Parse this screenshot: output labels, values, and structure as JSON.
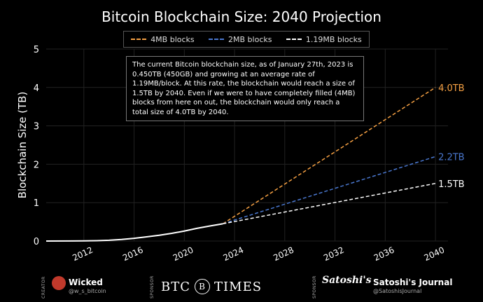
{
  "title": "Bitcoin Blockchain Size: 2040 Projection",
  "legend": [
    {
      "label": "4MB blocks",
      "color": "#f5a043"
    },
    {
      "label": "2MB blocks",
      "color": "#4a78d0"
    },
    {
      "label": "1.19MB blocks",
      "color": "#ffffff"
    }
  ],
  "annotation": "The current Bitcoin blockchain size, as of January 27th, 2023 is 0.450TB (450GB) and growing at an average rate of 1.19MB/block. At this rate, the blockchain would reach a size of 1.5TB by 2040. Even if we were to have completely filled (4MB) blocks from here on out, the blockchain would only reach a total size of 4.0TB by 2040.",
  "chart_data": {
    "type": "line",
    "title": "Bitcoin Blockchain Size: 2040 Projection",
    "xlabel": "",
    "ylabel": "Blockchain Size (TB)",
    "xlim": [
      2009,
      2041
    ],
    "ylim": [
      0,
      5
    ],
    "xticks": [
      2012,
      2016,
      2020,
      2024,
      2028,
      2032,
      2036,
      2040
    ],
    "yticks": [
      0,
      1,
      2,
      3,
      4,
      5
    ],
    "grid": true,
    "legend_position": "top",
    "historical": {
      "name": "",
      "color": "#ffffff",
      "x": [
        2009,
        2011,
        2012,
        2013,
        2014,
        2015,
        2016,
        2017,
        2018,
        2019,
        2020,
        2021,
        2022,
        2023.07
      ],
      "y": [
        0.0,
        0.002,
        0.004,
        0.01,
        0.02,
        0.04,
        0.07,
        0.11,
        0.15,
        0.2,
        0.26,
        0.33,
        0.39,
        0.45
      ]
    },
    "series": [
      {
        "name": "4MB blocks",
        "color": "#f5a043",
        "x": [
          2023.07,
          2040
        ],
        "y": [
          0.45,
          4.0
        ],
        "end_label": "4.0TB"
      },
      {
        "name": "2MB blocks",
        "color": "#4a78d0",
        "x": [
          2023.07,
          2040
        ],
        "y": [
          0.45,
          2.2
        ],
        "end_label": "2.2TB"
      },
      {
        "name": "1.19MB blocks",
        "color": "#ffffff",
        "x": [
          2023.07,
          2040
        ],
        "y": [
          0.45,
          1.5
        ],
        "end_label": "1.5TB"
      }
    ]
  },
  "footer": {
    "creator_label": "CREATOR",
    "creator_name": "Wicked",
    "creator_handle": "@w_s_bitcoin",
    "sponsor_label": "SPONSOR",
    "btc_left": "BTC",
    "btc_logo": "B",
    "btc_right": "TIMES",
    "sponsor2_label": "SPONSOR",
    "sj_logo": "Satoshi's",
    "sj_name": "Satoshi's Journal",
    "sj_handle": "@SatoshisJournal"
  }
}
